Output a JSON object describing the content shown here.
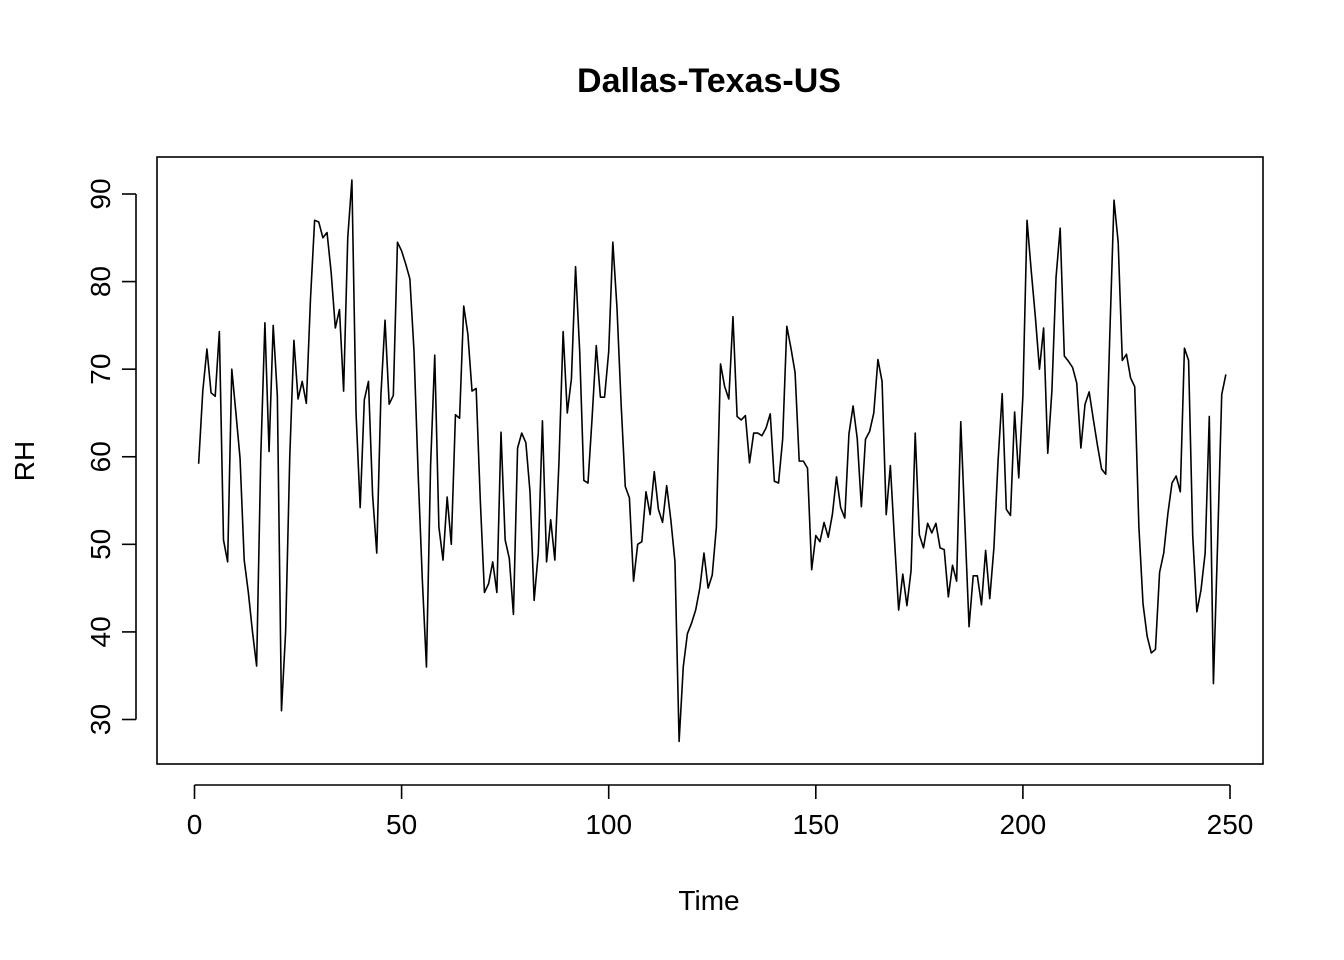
{
  "chart_data": {
    "type": "line",
    "title": "Dallas-Texas-US",
    "xlabel": "Time",
    "ylabel": "RH",
    "xlim": [
      1,
      248
    ],
    "ylim": [
      27.5,
      91.6
    ],
    "x_ticks": [
      0,
      50,
      100,
      150,
      200,
      250
    ],
    "y_ticks": [
      30,
      40,
      50,
      60,
      70,
      80,
      90
    ],
    "grid": false,
    "color": "#000000",
    "series": [
      {
        "values": [
          59.2,
          67.5,
          72.3,
          67.3,
          66.9,
          74.3,
          50.5,
          48.0,
          70.0,
          65.0,
          59.8,
          48.2,
          44.5,
          40.0,
          36.1,
          60.0,
          75.3,
          60.6,
          75.0,
          67.0,
          31.0,
          40.0,
          60.0,
          73.3,
          66.6,
          68.6,
          66.1,
          78.0,
          87.0,
          86.8,
          85.0,
          85.6,
          81.0,
          74.7,
          76.8,
          67.5,
          85.0,
          91.6,
          65.0,
          54.2,
          66.5,
          68.6,
          55.6,
          49.0,
          67.0,
          75.6,
          66.0,
          67.0,
          84.5,
          83.5,
          82.0,
          80.3,
          72.0,
          58.0,
          46.0,
          36.0,
          59.0,
          71.6,
          52.0,
          48.2,
          55.4,
          50.0,
          64.8,
          64.4,
          77.2,
          74.0,
          67.5,
          67.8,
          55.0,
          44.5,
          45.5,
          48.0,
          44.5,
          62.8,
          50.5,
          48.4,
          42.0,
          61.0,
          62.7,
          61.6,
          56.0,
          43.6,
          49.0,
          64.1,
          48.0,
          52.8,
          48.2,
          59.5,
          74.3,
          65.0,
          68.9,
          81.7,
          72.0,
          57.3,
          57.0,
          64.5,
          72.7,
          66.8,
          66.8,
          72.0,
          84.5,
          77.0,
          66.0,
          56.6,
          55.3,
          45.8,
          50.0,
          50.3,
          56.0,
          53.4,
          58.3,
          54.0,
          52.5,
          56.7,
          52.8,
          48.0,
          27.5,
          36.0,
          39.8,
          41.0,
          42.5,
          45.0,
          49.0,
          45.0,
          46.5,
          52.0,
          70.6,
          68.0,
          66.6,
          76.0,
          64.6,
          64.2,
          64.7,
          59.3,
          62.7,
          62.7,
          62.4,
          63.3,
          64.9,
          57.2,
          57.0,
          62.0,
          74.9,
          72.4,
          69.6,
          59.5,
          59.5,
          58.7,
          47.1,
          51.0,
          50.3,
          52.5,
          50.8,
          53.4,
          57.7,
          54.2,
          53.0,
          62.6,
          65.8,
          62.1,
          54.3,
          62.0,
          62.9,
          65.0,
          71.1,
          68.6,
          53.4,
          59.0,
          50.5,
          42.5,
          46.6,
          43.0,
          47.0,
          62.7,
          51.1,
          49.6,
          52.4,
          51.3,
          52.4,
          49.6,
          49.4,
          44.0,
          47.6,
          45.8,
          64.0,
          52.3,
          40.6,
          46.4,
          46.4,
          43.1,
          49.3,
          43.8,
          49.6,
          59.5,
          67.2,
          54.0,
          53.3,
          65.1,
          57.6,
          67.0,
          87.0,
          81.3,
          76.0,
          70.0,
          74.7,
          60.4,
          67.5,
          80.5,
          86.1,
          71.5,
          70.9,
          70.2,
          68.4,
          61.0,
          66.0,
          67.4,
          64.3,
          61.3,
          58.6,
          58.0,
          74.2,
          89.3,
          84.5,
          71.0,
          71.7,
          69.0,
          68.0,
          52.0,
          43.2,
          39.5,
          37.6,
          38.0,
          46.8,
          49.0,
          53.5,
          57.0,
          57.8,
          56.0,
          72.4,
          71.0,
          51.0,
          42.3,
          44.8,
          49.0,
          64.6,
          34.1,
          50.0,
          67.1,
          69.4
        ]
      }
    ]
  }
}
